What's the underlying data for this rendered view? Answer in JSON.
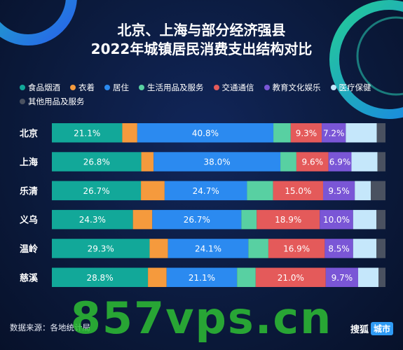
{
  "title_line1": "北京、上海与部分经济强县",
  "title_line2": "2022年城镇居民消费支出结构对比",
  "source": "数据来源：各地统计局",
  "watermark": "857vps.cn",
  "logo": {
    "part1": "搜狐",
    "part2": "城市"
  },
  "chart_data": {
    "type": "bar",
    "orientation": "horizontal",
    "stacked": true,
    "normalized_to_percent": true,
    "legend_position": "top",
    "categories": [
      "北京",
      "上海",
      "乐清",
      "义乌",
      "温岭",
      "慈溪"
    ],
    "series": [
      {
        "name": "食品烟酒",
        "color": "#12a899",
        "values": [
          21.1,
          26.8,
          26.7,
          24.3,
          29.3,
          28.8
        ],
        "show_labels": true
      },
      {
        "name": "衣着",
        "color": "#f59a3d",
        "values": [
          4.5,
          3.7,
          7.1,
          5.8,
          5.5,
          5.6
        ],
        "show_labels": false
      },
      {
        "name": "居住",
        "color": "#2b8af0",
        "values": [
          40.8,
          38.0,
          24.7,
          26.7,
          24.1,
          21.1
        ],
        "show_labels": true
      },
      {
        "name": "生活用品及服务",
        "color": "#58d0a2",
        "values": [
          5.2,
          4.8,
          7.8,
          4.6,
          6.0,
          5.6
        ],
        "show_labels": false
      },
      {
        "name": "交通通信",
        "color": "#e45a5a",
        "values": [
          9.3,
          9.6,
          15.0,
          18.9,
          16.9,
          21.0
        ],
        "show_labels": true
      },
      {
        "name": "教育文化娱乐",
        "color": "#7a56d6",
        "values": [
          7.2,
          6.9,
          9.5,
          10.0,
          8.5,
          9.7
        ],
        "show_labels": true
      },
      {
        "name": "医疗保健",
        "color": "#c5e7fb",
        "values": [
          9.3,
          7.8,
          4.8,
          7.0,
          7.0,
          6.1
        ],
        "show_labels": false
      },
      {
        "name": "其他用品及服务",
        "color": "#4a5160",
        "values": [
          2.6,
          2.4,
          4.4,
          2.7,
          2.7,
          2.1
        ],
        "show_labels": false
      }
    ]
  }
}
